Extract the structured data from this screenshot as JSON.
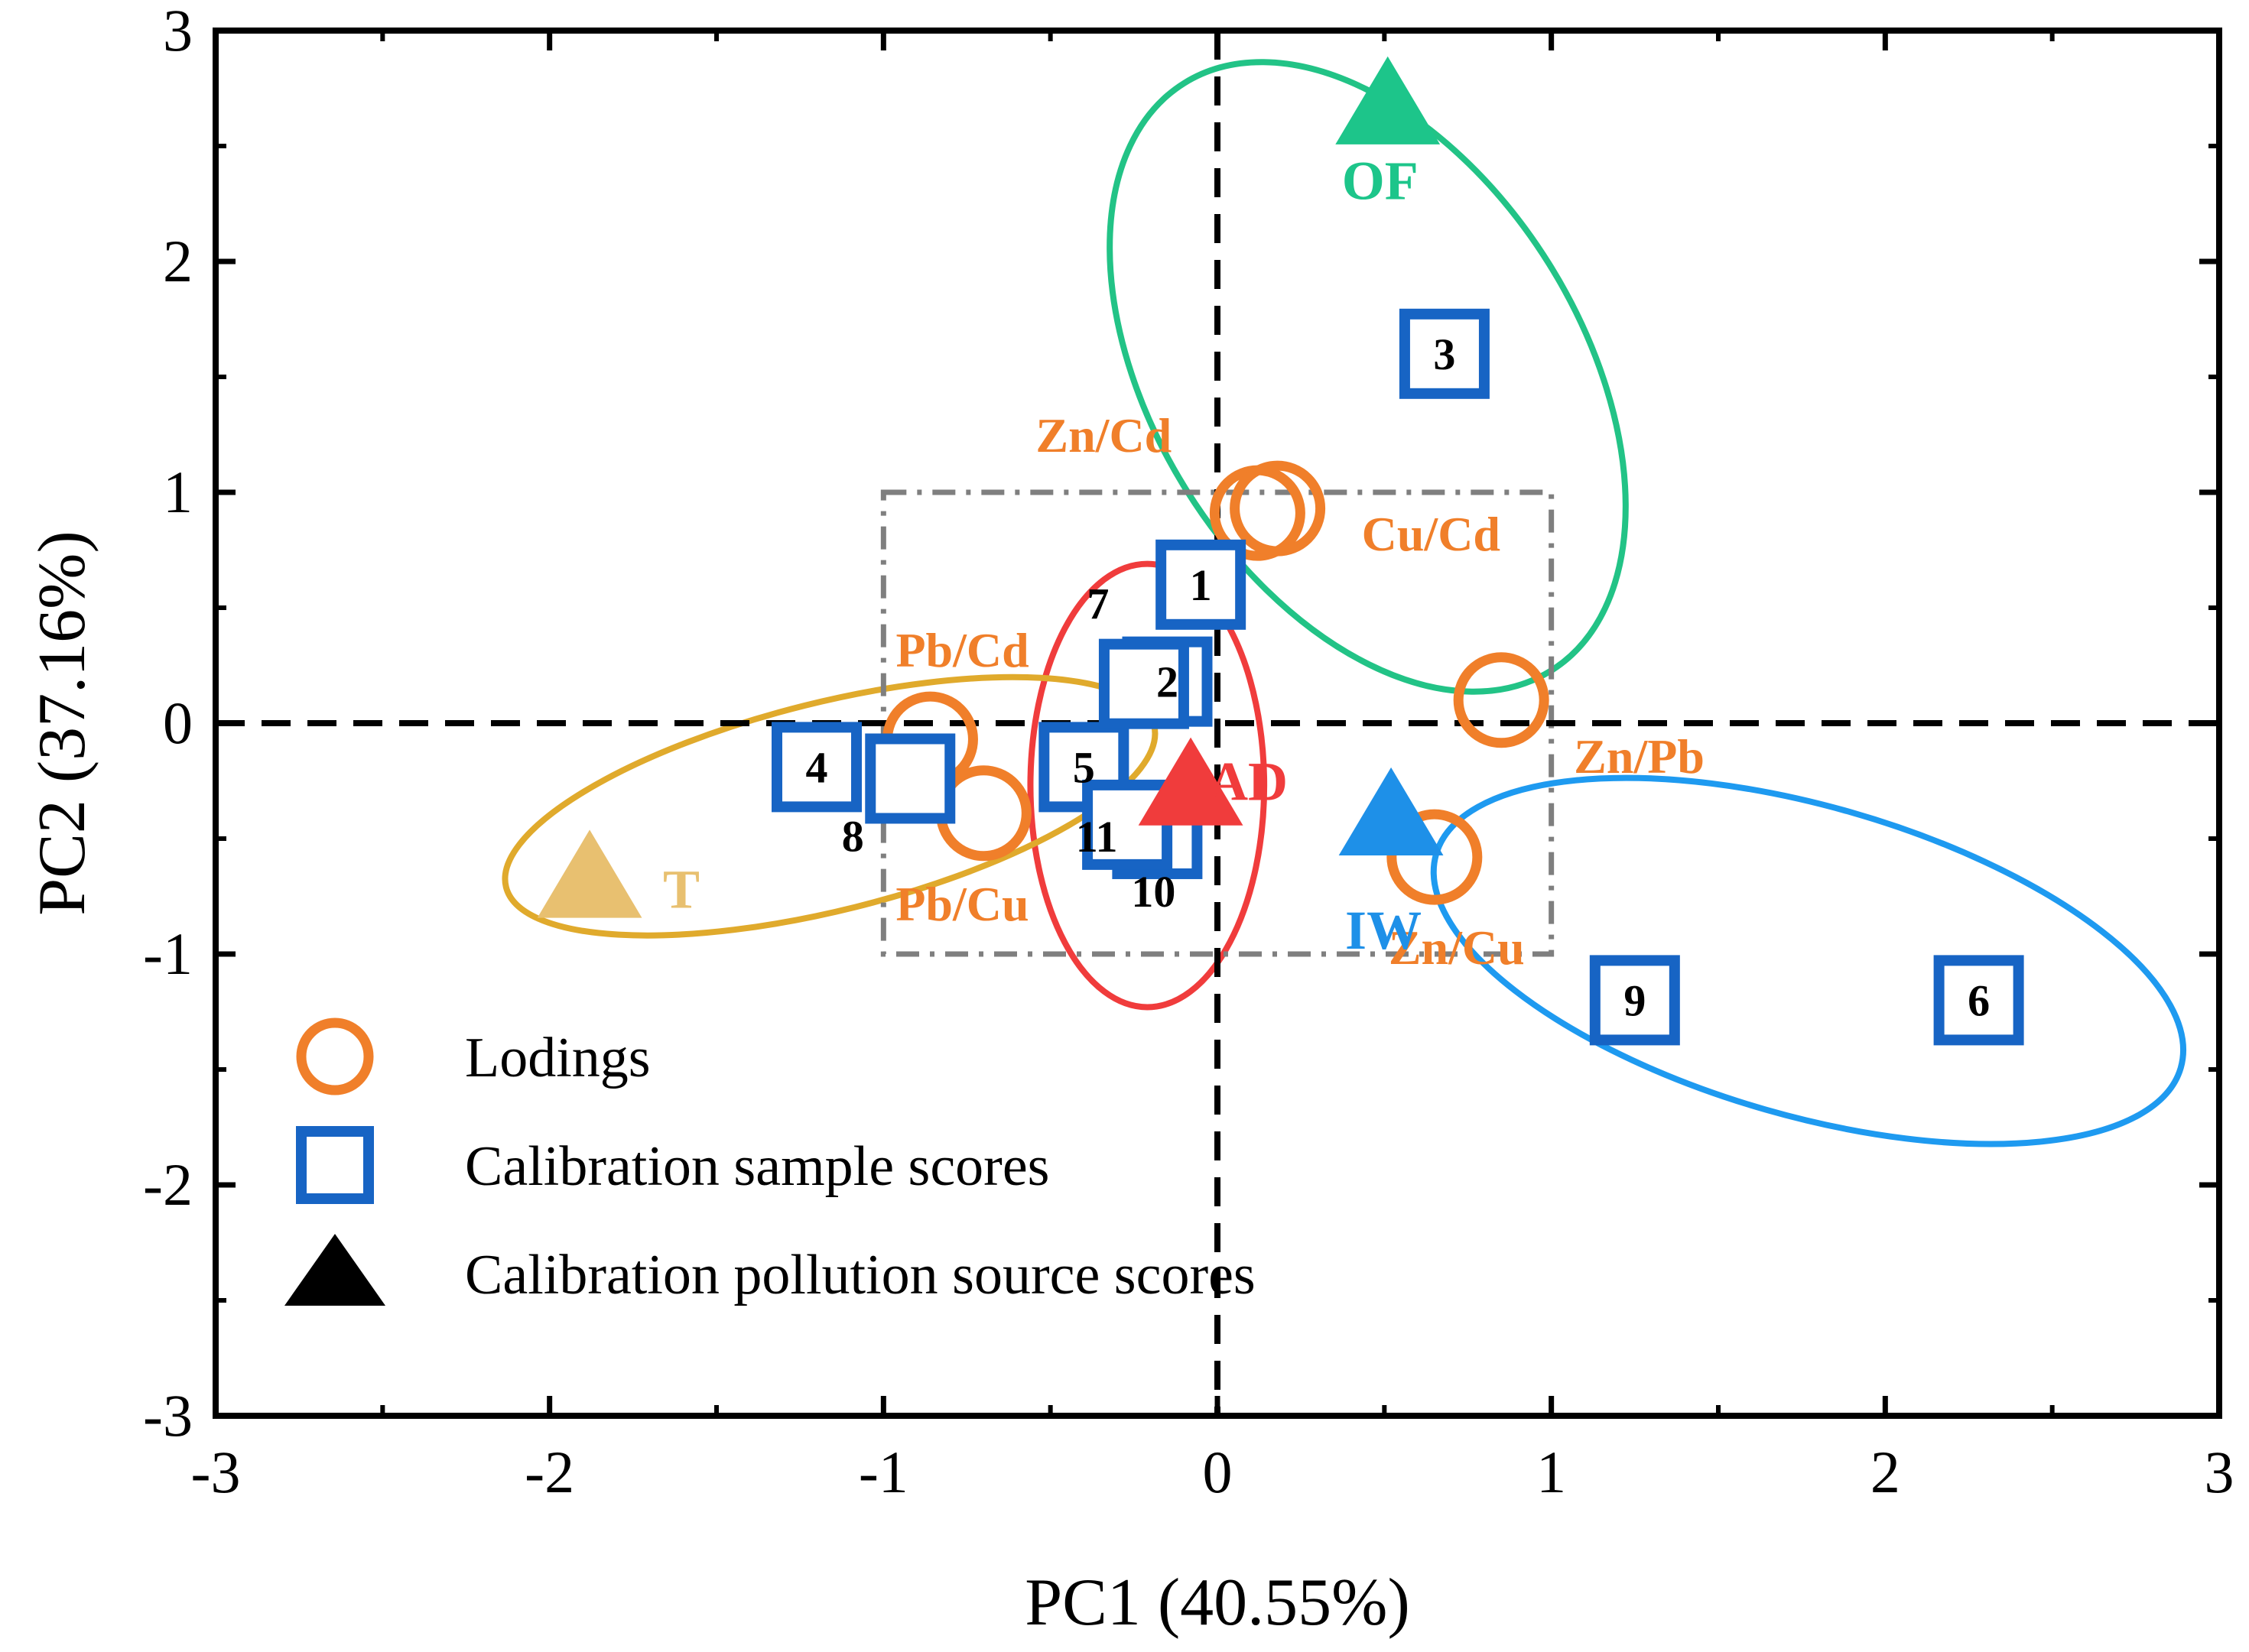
{
  "chart_data": {
    "type": "scatter",
    "title": "",
    "xlabel": "PC1 (40.55%)",
    "ylabel": "PC2 (37.16%)",
    "xlim": [
      -3,
      3
    ],
    "ylim": [
      -3,
      3
    ],
    "xticks": [
      "-3",
      "-2",
      "-1",
      "0",
      "1",
      "2",
      "3"
    ],
    "yticks": [
      "-3",
      "-2",
      "-1",
      "0",
      "1",
      "2",
      "3"
    ],
    "reference_lines": {
      "x": 0,
      "y": 0,
      "style": "dashed"
    },
    "highlight_box": {
      "x": [
        -1,
        1
      ],
      "y": [
        -1,
        1
      ],
      "style": "dash-dot",
      "color": "#7f7f7f"
    },
    "series": [
      {
        "name": "Lodings",
        "marker": "circle",
        "color": "#F07F2A",
        "points": [
          {
            "label": "Zn/Cd",
            "x": 0.12,
            "y": 0.91
          },
          {
            "label": "Cu/Cd",
            "x": 0.18,
            "y": 0.93
          },
          {
            "label": "Pb/Cd",
            "x": -0.86,
            "y": -0.07
          },
          {
            "label": "Pb/Cu",
            "x": -0.7,
            "y": -0.39
          },
          {
            "label": "Zn/Pb",
            "x": 0.85,
            "y": 0.1
          },
          {
            "label": "Zn/Cu",
            "x": 0.65,
            "y": -0.58
          }
        ]
      },
      {
        "name": "Calibration sample scores",
        "marker": "square",
        "color": "#1764C4",
        "points": [
          {
            "label": "1",
            "x": -0.05,
            "y": 0.6
          },
          {
            "label": "2",
            "x": -0.15,
            "y": 0.18
          },
          {
            "label": "3",
            "x": 0.68,
            "y": 1.6
          },
          {
            "label": "4",
            "x": -1.2,
            "y": -0.19
          },
          {
            "label": "5",
            "x": -0.4,
            "y": -0.19
          },
          {
            "label": "6",
            "x": 2.28,
            "y": -1.2
          },
          {
            "label": "7",
            "x": -0.22,
            "y": 0.17
          },
          {
            "label": "8",
            "x": -0.92,
            "y": -0.24
          },
          {
            "label": "9",
            "x": 1.25,
            "y": -1.2
          },
          {
            "label": "10",
            "x": -0.18,
            "y": -0.48
          },
          {
            "label": "11",
            "x": -0.27,
            "y": -0.44
          }
        ]
      },
      {
        "name": "Calibration pollution source scores",
        "marker": "triangle",
        "color": "#000000",
        "points": [
          {
            "label": "OF",
            "x": 0.51,
            "y": 2.65,
            "color": "#1DC58A"
          },
          {
            "label": "AD",
            "x": -0.08,
            "y": -0.3,
            "color": "#F03C3C"
          },
          {
            "label": "T",
            "x": -1.88,
            "y": -0.7,
            "color": "#E8C070"
          },
          {
            "label": "IW",
            "x": 0.52,
            "y": -0.43,
            "color": "#1E90E8"
          }
        ]
      }
    ],
    "ellipses": [
      {
        "group": "OF",
        "color": "#22C386",
        "cx": 0.45,
        "cy": 1.5,
        "rx": 0.64,
        "ry": 1.5,
        "angle": 32
      },
      {
        "group": "AD",
        "color": "#F03C3C",
        "cx": -0.21,
        "cy": -0.27,
        "rx": 0.35,
        "ry": 0.96,
        "angle": 0
      },
      {
        "group": "T",
        "color": "#E0AA2C",
        "cx": -1.16,
        "cy": -0.36,
        "rx": 1.0,
        "ry": 0.45,
        "angle": 14
      },
      {
        "group": "IW",
        "color": "#1E9AF0",
        "cx": 1.77,
        "cy": -1.03,
        "rx": 1.16,
        "ry": 0.67,
        "angle": -16
      }
    ]
  },
  "legend": {
    "items": [
      {
        "label": "Lodings",
        "marker": "circle",
        "color": "#F07F2A"
      },
      {
        "label": "Calibration sample scores",
        "marker": "square",
        "color": "#1764C4"
      },
      {
        "label": "Calibration pollution source scores",
        "marker": "triangle",
        "color": "#000000"
      }
    ]
  }
}
